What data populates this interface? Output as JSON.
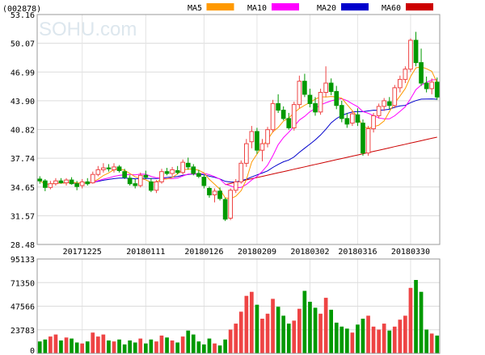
{
  "header": {
    "code": "(002878)",
    "watermark": "SOHU.com",
    "legend": [
      {
        "label": "MA5",
        "color": "#ff9900"
      },
      {
        "label": "MA10",
        "color": "#ff00ff"
      },
      {
        "label": "MA20",
        "color": "#0000cc"
      },
      {
        "label": "MA60",
        "color": "#cc0000"
      }
    ]
  },
  "chart_data": [
    {
      "type": "candlestick",
      "ylim": [
        28.48,
        53.16
      ],
      "y_ticks": [
        "53.16",
        "50.07",
        "46.99",
        "43.90",
        "40.82",
        "37.74",
        "34.65",
        "31.57",
        "28.48"
      ],
      "x_tick_labels": [
        {
          "label": "20171225",
          "index": 8
        },
        {
          "label": "20180111",
          "index": 20
        },
        {
          "label": "20180126",
          "index": 31
        },
        {
          "label": "20180209",
          "index": 41
        },
        {
          "label": "20180302",
          "index": 51
        },
        {
          "label": "20180316",
          "index": 60
        },
        {
          "label": "20180330",
          "index": 70
        }
      ],
      "up_color": "#ee4444",
      "down_color": "#009900",
      "ohlc": [
        [
          35.5,
          35.8,
          35.0,
          35.3
        ],
        [
          35.3,
          35.5,
          34.2,
          34.6
        ],
        [
          34.6,
          35.3,
          34.4,
          35.0
        ],
        [
          35.0,
          35.6,
          34.8,
          35.3
        ],
        [
          35.3,
          35.6,
          35.0,
          35.1
        ],
        [
          35.1,
          35.6,
          34.8,
          35.4
        ],
        [
          35.4,
          35.7,
          34.9,
          35.0
        ],
        [
          35.0,
          35.3,
          34.3,
          34.7
        ],
        [
          34.8,
          35.5,
          34.5,
          35.2
        ],
        [
          35.2,
          35.6,
          34.8,
          35.0
        ],
        [
          35.1,
          36.3,
          35.0,
          36.0
        ],
        [
          36.0,
          36.9,
          35.8,
          36.5
        ],
        [
          36.5,
          37.2,
          36.2,
          36.7
        ],
        [
          36.7,
          37.1,
          36.3,
          36.6
        ],
        [
          36.5,
          37.2,
          36.2,
          36.8
        ],
        [
          36.8,
          37.0,
          36.2,
          36.4
        ],
        [
          36.3,
          36.6,
          35.5,
          35.7
        ],
        [
          35.6,
          35.9,
          34.8,
          35.0
        ],
        [
          35.0,
          35.5,
          34.5,
          34.8
        ],
        [
          34.8,
          36.2,
          34.6,
          35.9
        ],
        [
          35.9,
          36.4,
          35.5,
          35.7
        ],
        [
          35.2,
          35.6,
          34.1,
          34.3
        ],
        [
          34.3,
          35.4,
          34.0,
          35.2
        ],
        [
          35.2,
          36.6,
          35.0,
          36.3
        ],
        [
          36.3,
          36.7,
          35.9,
          36.1
        ],
        [
          36.1,
          36.8,
          35.8,
          36.5
        ],
        [
          36.4,
          36.9,
          36.0,
          36.2
        ],
        [
          36.2,
          37.6,
          36.0,
          37.3
        ],
        [
          37.2,
          37.8,
          36.5,
          36.8
        ],
        [
          36.8,
          37.1,
          35.9,
          36.1
        ],
        [
          36.1,
          36.5,
          35.6,
          35.8
        ],
        [
          35.7,
          35.9,
          34.5,
          34.8
        ],
        [
          34.5,
          34.7,
          33.5,
          33.8
        ],
        [
          33.8,
          34.5,
          33.0,
          34.2
        ],
        [
          34.2,
          34.6,
          33.2,
          33.4
        ],
        [
          33.3,
          33.5,
          31.0,
          31.2
        ],
        [
          31.3,
          34.5,
          31.1,
          34.3
        ],
        [
          34.3,
          35.5,
          34.0,
          35.2
        ],
        [
          35.2,
          37.5,
          35.0,
          37.2
        ],
        [
          37.2,
          39.8,
          36.8,
          39.3
        ],
        [
          39.5,
          41.2,
          38.8,
          40.6
        ],
        [
          40.6,
          41.0,
          38.2,
          38.6
        ],
        [
          38.6,
          39.8,
          37.4,
          39.3
        ],
        [
          39.3,
          41.1,
          38.9,
          40.8
        ],
        [
          40.8,
          44.0,
          40.5,
          43.6
        ],
        [
          43.6,
          44.6,
          42.6,
          42.9
        ],
        [
          42.9,
          43.3,
          41.8,
          42.0
        ],
        [
          42.0,
          42.6,
          40.8,
          41.0
        ],
        [
          41.0,
          43.8,
          40.7,
          43.5
        ],
        [
          43.5,
          46.6,
          43.1,
          46.0
        ],
        [
          46.0,
          46.8,
          44.3,
          44.6
        ],
        [
          44.5,
          45.2,
          43.2,
          43.6
        ],
        [
          43.6,
          44.3,
          42.3,
          42.7
        ],
        [
          42.7,
          45.2,
          42.4,
          44.8
        ],
        [
          44.8,
          47.6,
          44.3,
          45.8
        ],
        [
          45.8,
          46.3,
          44.5,
          44.9
        ],
        [
          44.9,
          45.5,
          43.0,
          43.4
        ],
        [
          43.4,
          43.9,
          41.6,
          42.0
        ],
        [
          42.0,
          42.6,
          41.0,
          41.4
        ],
        [
          41.5,
          42.8,
          41.2,
          42.5
        ],
        [
          42.4,
          43.1,
          41.2,
          41.6
        ],
        [
          41.5,
          41.9,
          38.0,
          38.3
        ],
        [
          38.3,
          41.2,
          38.0,
          40.9
        ],
        [
          40.9,
          42.6,
          40.5,
          42.3
        ],
        [
          42.3,
          43.6,
          42.0,
          43.3
        ],
        [
          43.3,
          44.2,
          42.8,
          43.9
        ],
        [
          43.8,
          44.3,
          43.0,
          43.4
        ],
        [
          43.4,
          45.6,
          43.1,
          45.3
        ],
        [
          45.3,
          46.6,
          44.8,
          46.2
        ],
        [
          46.2,
          47.6,
          45.8,
          47.3
        ],
        [
          47.3,
          50.6,
          47.0,
          50.4
        ],
        [
          50.4,
          51.3,
          47.6,
          48.0
        ],
        [
          48.0,
          49.5,
          45.5,
          45.8
        ],
        [
          45.8,
          46.5,
          44.8,
          45.2
        ],
        [
          45.2,
          46.3,
          44.6,
          45.9
        ],
        [
          45.9,
          46.4,
          44.0,
          44.3
        ]
      ],
      "ma_colors": {
        "ma5": "#ff9900",
        "ma10": "#ff00ff",
        "ma20": "#0000cc",
        "ma60": "#cc0000"
      },
      "ma60_start": {
        "index": 35,
        "value": 34.9
      },
      "ma60_end": {
        "index": 75,
        "value": 40.0
      }
    },
    {
      "type": "bar",
      "ylim": [
        0,
        95133
      ],
      "y_ticks": [
        "95133",
        "71350",
        "47566",
        "23783",
        "0"
      ],
      "values": [
        12000,
        14000,
        17000,
        19000,
        13000,
        16000,
        15000,
        11000,
        10000,
        12000,
        21000,
        17000,
        19000,
        13000,
        12000,
        14000,
        9000,
        13000,
        11000,
        15000,
        10000,
        14000,
        12000,
        18000,
        16000,
        13000,
        11000,
        17000,
        23000,
        19000,
        12000,
        9000,
        15000,
        10000,
        8000,
        14000,
        24000,
        30000,
        42000,
        58000,
        62000,
        49000,
        35000,
        40000,
        55000,
        47000,
        38000,
        30000,
        33000,
        45000,
        63000,
        52000,
        46000,
        40000,
        56000,
        44000,
        31000,
        27000,
        25000,
        21000,
        29000,
        35000,
        38000,
        27000,
        24000,
        30000,
        23000,
        27000,
        34000,
        38000,
        66000,
        74000,
        62000,
        24000,
        20000,
        18000
      ]
    }
  ]
}
